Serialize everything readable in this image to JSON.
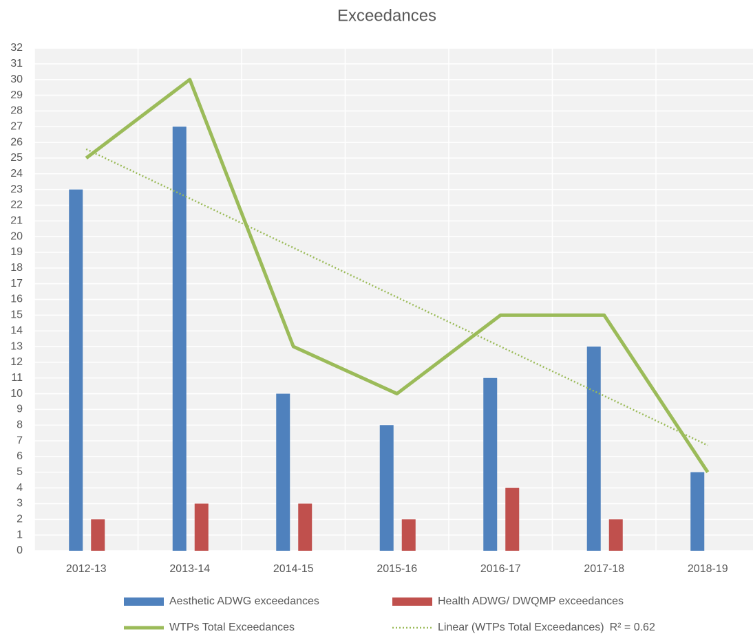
{
  "chart_data": {
    "type": "bar",
    "title": "Exceedances",
    "categories": [
      "2012-13",
      "2013-14",
      "2014-15",
      "2015-16",
      "2016-17",
      "2017-18",
      "2018-19"
    ],
    "series": [
      {
        "name": "Aesthetic ADWG exceedances",
        "type": "bar",
        "color": "#4f81bd",
        "values": [
          23,
          27,
          10,
          8,
          11,
          13,
          5
        ]
      },
      {
        "name": "Health ADWG/ DWQMP exceedances",
        "type": "bar",
        "color": "#c0504d",
        "values": [
          2,
          3,
          3,
          2,
          4,
          2,
          null
        ]
      },
      {
        "name": "WTPs Total Exceedances",
        "type": "line",
        "color": "#9bbb59",
        "values": [
          25,
          30,
          13,
          10,
          15,
          15,
          5
        ]
      },
      {
        "name": "Linear (WTPs Total Exceedances)",
        "type": "line",
        "dotted": true,
        "color": "#9bbb59",
        "values": [
          25.57,
          22.43,
          19.29,
          16.14,
          13.0,
          9.86,
          6.71
        ],
        "annotation": "R² = 0.62"
      }
    ],
    "ylim": [
      0,
      32
    ],
    "yticks": [
      0,
      1,
      2,
      3,
      4,
      5,
      6,
      7,
      8,
      9,
      10,
      11,
      12,
      13,
      14,
      15,
      16,
      17,
      18,
      19,
      20,
      21,
      22,
      23,
      24,
      25,
      26,
      27,
      28,
      29,
      30,
      31,
      32
    ],
    "grid": true
  }
}
